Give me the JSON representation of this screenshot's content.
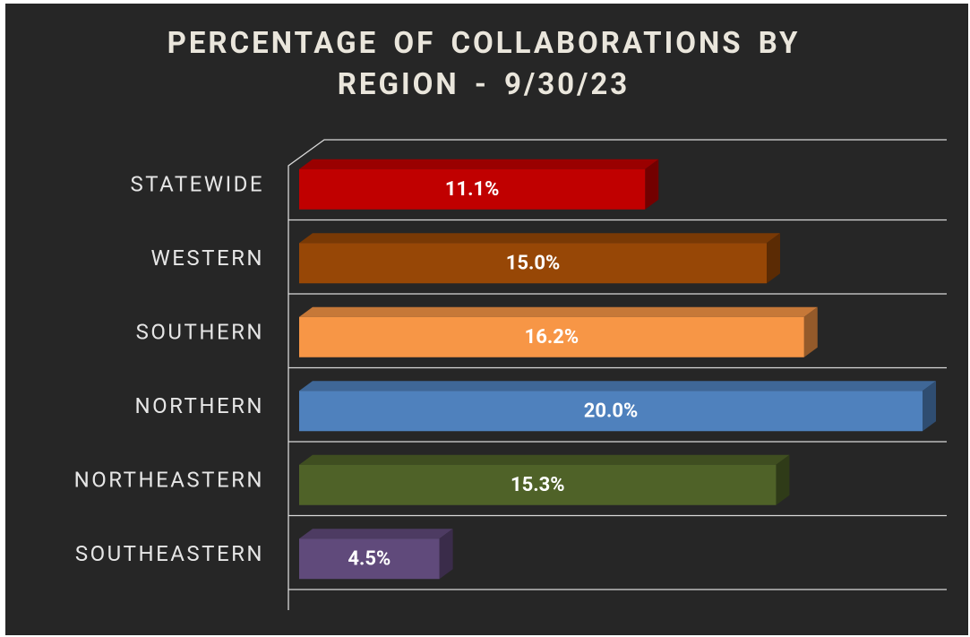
{
  "chart_data": {
    "type": "bar3d-horizontal",
    "title": "PERCENTAGE OF COLLABORATIONS BY REGION - 9/30/23",
    "categories": [
      "STATEWIDE",
      "WESTERN",
      "SOUTHERN",
      "NORTHERN",
      "NORTHEASTERN",
      "SOUTHEASTERN"
    ],
    "values": [
      11.1,
      15.0,
      16.2,
      20.0,
      15.3,
      4.5
    ],
    "value_labels": [
      "11.1%",
      "15.0%",
      "16.2%",
      "20.0%",
      "15.3%",
      "4.5%"
    ],
    "colors": [
      "#c00000",
      "#974706",
      "#f79646",
      "#4f81bd",
      "#4f6228",
      "#604a7b"
    ]
  }
}
